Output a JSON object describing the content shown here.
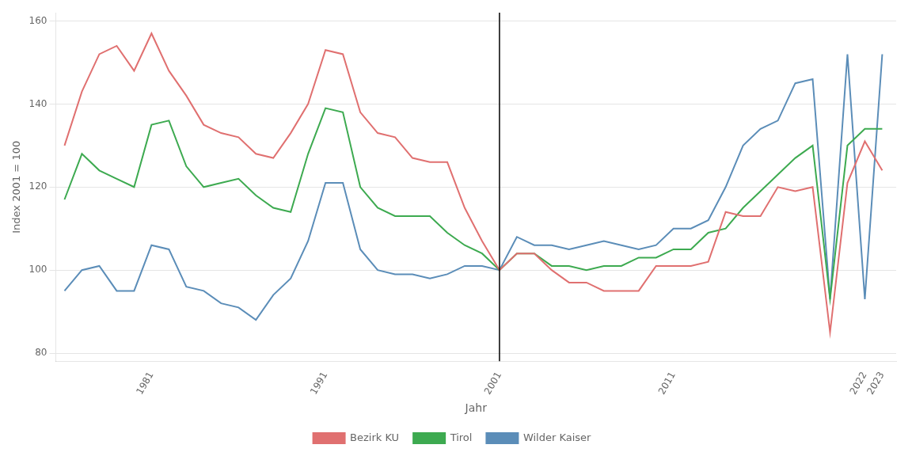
{
  "chart_data": {
    "type": "line",
    "x": [
      1976,
      1977,
      1978,
      1979,
      1980,
      1981,
      1982,
      1983,
      1984,
      1985,
      1986,
      1987,
      1988,
      1989,
      1990,
      1991,
      1992,
      1993,
      1994,
      1995,
      1996,
      1997,
      1998,
      1999,
      2000,
      2001,
      2002,
      2003,
      2004,
      2005,
      2006,
      2007,
      2008,
      2009,
      2010,
      2011,
      2012,
      2013,
      2014,
      2015,
      2016,
      2017,
      2018,
      2019,
      2020,
      2021,
      2022,
      2023
    ],
    "series": [
      {
        "name": "Bezirk KU",
        "color": "#E07070",
        "values": [
          130,
          143,
          152,
          154,
          148,
          157,
          148,
          142,
          135,
          133,
          132,
          128,
          127,
          133,
          140,
          153,
          152,
          138,
          133,
          132,
          127,
          126,
          126,
          115,
          107,
          100,
          104,
          104,
          100,
          97,
          97,
          95,
          95,
          95,
          101,
          101,
          101,
          102,
          114,
          113,
          113,
          120,
          119,
          120,
          85,
          121,
          131,
          124
        ]
      },
      {
        "name": "Tirol",
        "color": "#3DAA50",
        "values": [
          117,
          128,
          124,
          122,
          120,
          135,
          136,
          125,
          120,
          121,
          122,
          118,
          115,
          114,
          128,
          139,
          138,
          120,
          115,
          113,
          113,
          113,
          109,
          106,
          104,
          100,
          104,
          104,
          101,
          101,
          100,
          101,
          101,
          103,
          103,
          105,
          105,
          109,
          110,
          115,
          119,
          123,
          127,
          130,
          93,
          130,
          134,
          134
        ]
      },
      {
        "name": "Wilder Kaiser",
        "color": "#5B8DB8",
        "values": [
          95,
          100,
          101,
          95,
          95,
          106,
          105,
          96,
          95,
          92,
          91,
          88,
          94,
          98,
          107,
          121,
          121,
          105,
          100,
          99,
          99,
          98,
          99,
          101,
          101,
          100,
          108,
          106,
          106,
          105,
          106,
          107,
          106,
          105,
          106,
          110,
          110,
          112,
          120,
          130,
          134,
          136,
          145,
          146,
          93,
          152,
          93,
          152
        ]
      }
    ],
    "vline": {
      "x": 2001,
      "color": "#000000"
    },
    "xlim": [
      1975.5,
      2023.8
    ],
    "ylim": [
      78,
      162
    ],
    "xticks": [
      1981,
      1991,
      2001,
      2011,
      2022,
      2023
    ],
    "yticks": [
      80,
      100,
      120,
      140,
      160
    ],
    "xlabel": "Jahr",
    "ylabel": "Index 2001 = 100",
    "grid": "y",
    "legend": "bottom"
  }
}
